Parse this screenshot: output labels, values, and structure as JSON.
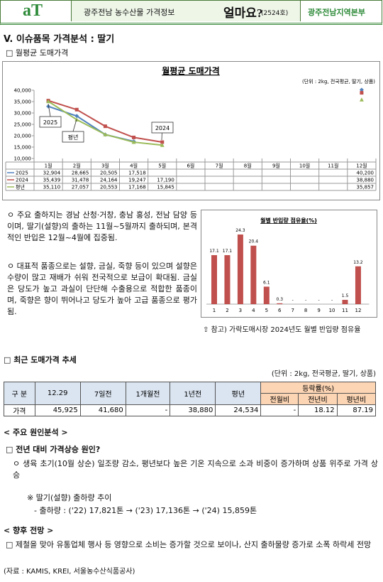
{
  "header": {
    "logo": "aT",
    "title": "광주전남 농수산물 가격정보",
    "brand": "얼마요?",
    "issue": "(2524호)",
    "org": "광주전남지역본부"
  },
  "section_title": "V. 이슈품목 가격분석 : 딸기",
  "monthly_heading": "□ 월평균 도매가격",
  "chart_data": [
    {
      "type": "line",
      "title": "월평균 도매가격",
      "subtitle": "(단위 : 2kg, 전국평균, 딸기, 상품)",
      "categories": [
        "1월",
        "2월",
        "3월",
        "4월",
        "5월",
        "6월",
        "7월",
        "8월",
        "9월",
        "10월",
        "11월",
        "12월"
      ],
      "series": [
        {
          "name": "2025",
          "color": "#4f81bd",
          "values": [
            32904,
            28665,
            20505,
            17518,
            null,
            null,
            null,
            null,
            null,
            null,
            null,
            40200
          ],
          "value_labels": [
            "32,904",
            "28,665",
            "20,505",
            "17,518",
            null,
            null,
            null,
            null,
            null,
            null,
            null,
            "40,200"
          ]
        },
        {
          "name": "2024",
          "color": "#c0504d",
          "values": [
            35439,
            31478,
            24164,
            19247,
            17190,
            null,
            null,
            null,
            null,
            null,
            null,
            38880
          ],
          "value_labels": [
            "35,439",
            "31,478",
            "24,164",
            "19,247",
            "17,190",
            null,
            null,
            null,
            null,
            null,
            null,
            "38,880"
          ]
        },
        {
          "name": "평년",
          "color": "#9bbb59",
          "values": [
            35110,
            27057,
            20553,
            17168,
            15845,
            null,
            null,
            null,
            null,
            null,
            null,
            35857
          ],
          "value_labels": [
            "35,110",
            "27,057",
            "20,553",
            "17,168",
            "15,845",
            null,
            null,
            null,
            null,
            null,
            null,
            "35,857"
          ]
        }
      ],
      "ylim": [
        10000,
        40000
      ],
      "yticks": [
        {
          "value": 10000,
          "label": "10,000"
        },
        {
          "value": 15000,
          "label": "15,000"
        },
        {
          "value": 20000,
          "label": "20,000"
        },
        {
          "value": 25000,
          "label": "25,000"
        },
        {
          "value": 30000,
          "label": "30,000"
        },
        {
          "value": 35000,
          "label": "35,000"
        },
        {
          "value": 40000,
          "label": "40,000"
        }
      ],
      "annotations": [
        "2025",
        "평년",
        "2024"
      ]
    },
    {
      "type": "bar",
      "title": "월별 반입량 점유율(%)",
      "categories": [
        "1",
        "2",
        "3",
        "4",
        "5",
        "6",
        "7",
        "8",
        "9",
        "10",
        "11",
        "12"
      ],
      "values": [
        17.1,
        17.1,
        24.3,
        20.4,
        6.1,
        0.3,
        null,
        null,
        null,
        null,
        1.5,
        13.2
      ],
      "value_labels": [
        "17.1",
        "17.1",
        "24.3",
        "20.4",
        "6.1",
        "0.3",
        "-",
        "-",
        "-",
        "-",
        "1.5",
        "13.2"
      ],
      "color": "#c0504d"
    }
  ],
  "paragraphs": [
    "ㅇ 주요 출하지는 경남 산청·거창, 충남 홍성, 전남 담양 등이며, 딸기(설향)의 출하는 11월~5월까지 출하되며, 본격적인 반입은 12월~4월에 집중됨.",
    "ㅇ 대표적 품종으로는 설향, 금실, 죽향 등이 있으며 설향은 수량이 많고 재배가 쉬워 전국적으로 보급이 확대됨. 금실은 당도가 높고 과실이 단단해 수출용으로 적합한 품종이며, 죽향은 향이 뛰어나고 당도가 높아 고급 품종으로 평가됨."
  ],
  "chart_caption": "⇧ 참고) 가락도매시장 2024년도 월별 반입량 점유율",
  "trend": {
    "heading": "□ 최근 도매가격 추세",
    "unit": "(단위 : 2kg, 전국평균, 딸기, 상품)",
    "table": {
      "header": [
        "구 분",
        "12.29",
        "7일전",
        "1개월전",
        "1년전",
        "평년"
      ],
      "group_header": "등락률(%)",
      "sub_header": [
        "전월비",
        "전년비",
        "평년비"
      ],
      "rows": [
        [
          "가격",
          "45,925",
          "41,680",
          "-",
          "38,880",
          "24,534",
          "-",
          "18.12",
          "87.19"
        ]
      ]
    }
  },
  "analysis": {
    "heading": "< 주요 원인분석 >",
    "question": "□ 전년 대비 가격상승 원인?",
    "bullet": "ㅇ 생육 초기(10월 상순) 일조량 감소, 평년보다 높은 기온 지속으로 소과 비중이 증가하며 상품 위주로 가격 상승",
    "note": "※ 딸기(설향) 출하량 추이",
    "shipment": "- 출하량 : ('22) 17,821톤 → ('23) 17,136톤 → ('24) 15,859톤"
  },
  "outlook": {
    "heading": "< 향후 전망 >",
    "text": "□ 제철을 맞아 유통업체 행사 등 영향으로 소비는 증가할 것으로 보이나, 산지 출하물량 증가로 소폭 하락세 전망"
  },
  "source": "(자료 : KAMIS, KREI, 서울농수산식품공사)"
}
